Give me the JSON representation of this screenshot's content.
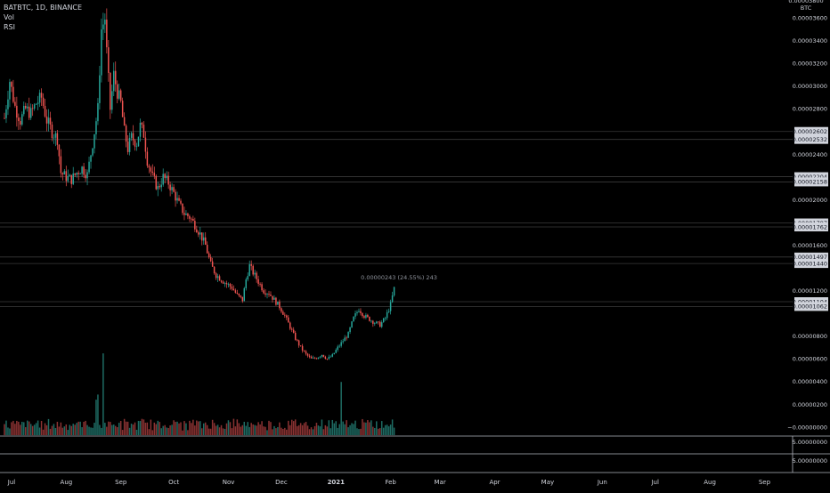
{
  "header": {
    "symbol_line": "BATBTC, 1D, BINANCE",
    "indicator_vol": "Vol",
    "indicator_rsi": "RSI"
  },
  "price_axis": {
    "currency": "BTC",
    "top_cut_label": "0.00003800",
    "ticks": [
      {
        "label": "0.00003600",
        "value": 3600
      },
      {
        "label": "0.00003400",
        "value": 3400
      },
      {
        "label": "0.00003200",
        "value": 3200
      },
      {
        "label": "0.00003000",
        "value": 3000
      },
      {
        "label": "0.00002800",
        "value": 2800
      },
      {
        "label": "0.00002400",
        "value": 2400
      },
      {
        "label": "0.00002000",
        "value": 2000
      },
      {
        "label": "0.00001600",
        "value": 1600
      },
      {
        "label": "0.00001200",
        "value": 1200
      },
      {
        "label": "0.00000800",
        "value": 800
      },
      {
        "label": "0.00000600",
        "value": 600
      },
      {
        "label": "0.00000400",
        "value": 400
      },
      {
        "label": "0.00000200",
        "value": 200
      },
      {
        "label": "−0.00000000",
        "value": 0
      }
    ],
    "level_labels": [
      {
        "label": "0.00002602",
        "value": 2602
      },
      {
        "label": "0.00002532",
        "value": 2532
      },
      {
        "label": "0.00002204",
        "value": 2204
      },
      {
        "label": "0.00002158",
        "value": 2158
      },
      {
        "label": "0.00001797",
        "value": 1797
      },
      {
        "label": "0.00001762",
        "value": 1762
      },
      {
        "label": "0.00001497",
        "value": 1497
      },
      {
        "label": "0.00001440",
        "value": 1440
      },
      {
        "label": "0.00001104",
        "value": 1104
      },
      {
        "label": "0.00001062",
        "value": 1062
      }
    ],
    "unit_note": "values in satoshi (1e-8 BTC)"
  },
  "pane_axes": [
    {
      "label": "5.00000000"
    },
    {
      "label": "5.00000000"
    }
  ],
  "measure_label": "0.00000243 (24.55%) 243",
  "time_axis": [
    {
      "label": "Jul",
      "x": 0,
      "bold": false
    },
    {
      "label": "Aug",
      "x": 31,
      "bold": false
    },
    {
      "label": "Sep",
      "x": 62,
      "bold": false
    },
    {
      "label": "Oct",
      "x": 92,
      "bold": false
    },
    {
      "label": "Nov",
      "x": 123,
      "bold": false
    },
    {
      "label": "Dec",
      "x": 153,
      "bold": false
    },
    {
      "label": "2021",
      "x": 184,
      "bold": true
    },
    {
      "label": "Feb",
      "x": 215,
      "bold": false
    },
    {
      "label": "Mar",
      "x": 243,
      "bold": false
    },
    {
      "label": "Apr",
      "x": 274,
      "bold": false
    },
    {
      "label": "May",
      "x": 304,
      "bold": false
    },
    {
      "label": "Jun",
      "x": 335,
      "bold": false
    },
    {
      "label": "Jul",
      "x": 365,
      "bold": false
    },
    {
      "label": "Aug",
      "x": 396,
      "bold": false
    },
    {
      "label": "Sep",
      "x": 427,
      "bold": false
    }
  ],
  "colors": {
    "up": "#26a69a",
    "down": "#ef5350",
    "vol_up": "#1e6b63",
    "vol_down": "#8a3232",
    "level_line": "#3a3a3a",
    "label_bg": "#d1d4dc",
    "label_text": "#131722",
    "axis_text": "#d1d4dc",
    "separator": "#b2b5be"
  },
  "chart_data": {
    "type": "candlestick",
    "units": "satoshi",
    "x_axis": "days since Jul 1 2020",
    "anchors": [
      [
        0,
        2720
      ],
      [
        3,
        3050
      ],
      [
        6,
        2820
      ],
      [
        9,
        2700
      ],
      [
        12,
        2800
      ],
      [
        15,
        2760
      ],
      [
        18,
        2850
      ],
      [
        21,
        2900
      ],
      [
        24,
        2700
      ],
      [
        27,
        2600
      ],
      [
        30,
        2540
      ],
      [
        32,
        2240
      ],
      [
        35,
        2200
      ],
      [
        38,
        2180
      ],
      [
        41,
        2240
      ],
      [
        44,
        2280
      ],
      [
        47,
        2220
      ],
      [
        50,
        2500
      ],
      [
        53,
        2800
      ],
      [
        55,
        3500
      ],
      [
        57,
        3600
      ],
      [
        58,
        3300
      ],
      [
        60,
        2800
      ],
      [
        62,
        3100
      ],
      [
        64,
        2950
      ],
      [
        66,
        2850
      ],
      [
        68,
        2600
      ],
      [
        70,
        2450
      ],
      [
        72,
        2550
      ],
      [
        75,
        2500
      ],
      [
        77,
        2650
      ],
      [
        79,
        2580
      ],
      [
        81,
        2350
      ],
      [
        84,
        2200
      ],
      [
        87,
        2100
      ],
      [
        90,
        2200
      ],
      [
        93,
        2150
      ],
      [
        96,
        2060
      ],
      [
        99,
        1960
      ],
      [
        102,
        1880
      ],
      [
        105,
        1850
      ],
      [
        108,
        1780
      ],
      [
        111,
        1700
      ],
      [
        114,
        1600
      ],
      [
        117,
        1430
      ],
      [
        120,
        1340
      ],
      [
        123,
        1300
      ],
      [
        126,
        1260
      ],
      [
        129,
        1230
      ],
      [
        132,
        1160
      ],
      [
        135,
        1120
      ],
      [
        137,
        1300
      ],
      [
        139,
        1420
      ],
      [
        141,
        1360
      ],
      [
        144,
        1280
      ],
      [
        147,
        1200
      ],
      [
        150,
        1180
      ],
      [
        153,
        1120
      ],
      [
        156,
        1060
      ],
      [
        159,
        980
      ],
      [
        162,
        880
      ],
      [
        165,
        780
      ],
      [
        168,
        700
      ],
      [
        171,
        640
      ],
      [
        174,
        600
      ],
      [
        177,
        610
      ],
      [
        180,
        640
      ],
      [
        183,
        600
      ],
      [
        186,
        630
      ],
      [
        189,
        700
      ],
      [
        192,
        760
      ],
      [
        195,
        820
      ],
      [
        198,
        960
      ],
      [
        201,
        1040
      ],
      [
        204,
        980
      ],
      [
        207,
        950
      ],
      [
        210,
        920
      ],
      [
        213,
        900
      ],
      [
        216,
        960
      ],
      [
        219,
        1080
      ],
      [
        221,
        1220
      ]
    ],
    "volume_spikes": [
      [
        56,
        7.5
      ],
      [
        53,
        3.8
      ],
      [
        52,
        3.0
      ],
      [
        191,
        4.8
      ],
      [
        220,
        1.4
      ]
    ],
    "price_range": [
      0,
      3800
    ]
  }
}
